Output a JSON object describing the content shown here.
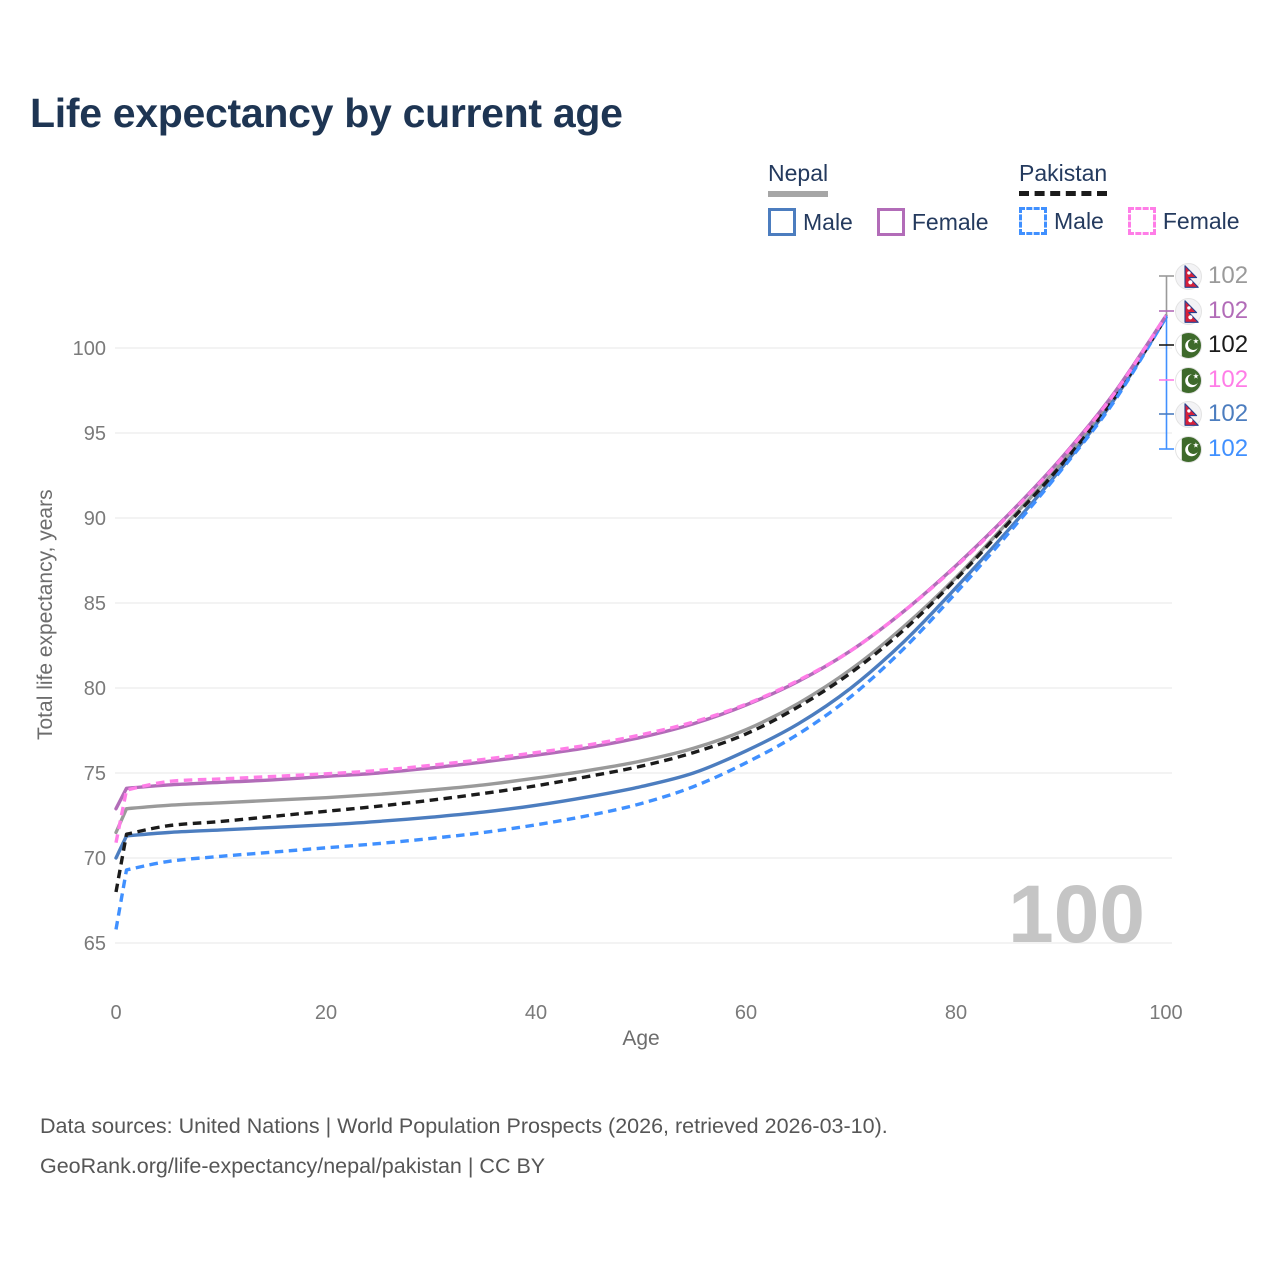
{
  "title": "Life expectancy by current age",
  "legend": {
    "groups": [
      {
        "label": "Nepal",
        "style": "solid",
        "underline_color": "#a6a6a6",
        "items": [
          {
            "label": "Male",
            "color": "#4c7dbf",
            "dashed": false
          },
          {
            "label": "Female",
            "color": "#b26cb8",
            "dashed": false
          }
        ]
      },
      {
        "label": "Pakistan",
        "style": "dashed",
        "underline_color": "#1b1b1b",
        "items": [
          {
            "label": "Male",
            "color": "#4090ff",
            "dashed": true
          },
          {
            "label": "Female",
            "color": "#ff7de7",
            "dashed": true
          }
        ]
      }
    ]
  },
  "end_labels": [
    {
      "value": "102",
      "flag": "nepal",
      "color": "#9a9a9a",
      "series": "Nepal"
    },
    {
      "value": "102",
      "flag": "nepal",
      "color": "#b26cb8",
      "series": "Nepal Female"
    },
    {
      "value": "102",
      "flag": "pakistan",
      "color": "#1b1b1b",
      "series": "Pakistan"
    },
    {
      "value": "102",
      "flag": "pakistan",
      "color": "#ff7de7",
      "series": "Pakistan Female"
    },
    {
      "value": "102",
      "flag": "nepal",
      "color": "#4c7dbf",
      "series": "Nepal Male"
    },
    {
      "value": "102",
      "flag": "pakistan",
      "color": "#4090ff",
      "series": "Pakistan Male"
    }
  ],
  "watermark": "100",
  "footer": {
    "line1": "Data sources: United Nations | World Population Prospects (2026, retrieved 2026-03-10).",
    "line2": "GeoRank.org/life-expectancy/nepal/pakistan | CC BY"
  },
  "chart_data": {
    "type": "line",
    "title": "Life expectancy by current age",
    "xlabel": "Age",
    "ylabel": "Total life expectancy, years",
    "x_ticks": [
      0,
      20,
      40,
      60,
      80,
      100
    ],
    "y_ticks": [
      65,
      70,
      75,
      80,
      85,
      90,
      95,
      100
    ],
    "xlim": [
      0,
      100
    ],
    "ylim": [
      64.5,
      103
    ],
    "grid": "horizontal",
    "legend_position": "top-right",
    "ages": [
      0,
      1,
      5,
      10,
      15,
      20,
      25,
      30,
      35,
      40,
      45,
      50,
      55,
      60,
      65,
      70,
      75,
      80,
      85,
      90,
      95,
      100
    ],
    "series": [
      {
        "name": "Nepal",
        "country": "Nepal",
        "sex": "both",
        "line": "solid",
        "color": "#9a9a9a",
        "end_label": "102",
        "values": [
          71.5,
          72.9,
          73.1,
          73.25,
          73.4,
          73.55,
          73.75,
          74.0,
          74.3,
          74.7,
          75.15,
          75.7,
          76.45,
          77.55,
          79.1,
          81.1,
          83.6,
          86.5,
          89.8,
          93.2,
          97.1,
          101.8
        ]
      },
      {
        "name": "Nepal Male",
        "country": "Nepal",
        "sex": "male",
        "line": "solid",
        "color": "#4c7dbf",
        "end_label": "102",
        "values": [
          70.0,
          71.3,
          71.5,
          71.65,
          71.8,
          71.95,
          72.15,
          72.4,
          72.7,
          73.1,
          73.6,
          74.2,
          75.0,
          76.3,
          77.9,
          80.0,
          82.7,
          85.9,
          89.3,
          92.9,
          96.9,
          101.8
        ]
      },
      {
        "name": "Pakistan",
        "country": "Pakistan",
        "sex": "both",
        "line": "dashed",
        "color": "#1b1b1b",
        "end_label": "102",
        "values": [
          68.0,
          71.4,
          71.9,
          72.15,
          72.45,
          72.75,
          73.05,
          73.4,
          73.8,
          74.25,
          74.8,
          75.4,
          76.2,
          77.3,
          78.9,
          80.9,
          83.4,
          86.4,
          89.7,
          93.1,
          97.0,
          101.8
        ]
      },
      {
        "name": "Pakistan Male",
        "country": "Pakistan",
        "sex": "male",
        "line": "dashed",
        "color": "#4090ff",
        "end_label": "102",
        "values": [
          65.8,
          69.3,
          69.8,
          70.1,
          70.35,
          70.6,
          70.85,
          71.15,
          71.5,
          71.95,
          72.5,
          73.2,
          74.2,
          75.6,
          77.3,
          79.5,
          82.3,
          85.6,
          89.1,
          92.8,
          96.8,
          101.8
        ]
      },
      {
        "name": "Nepal Female",
        "country": "Nepal",
        "sex": "female",
        "line": "solid",
        "color": "#b26cb8",
        "end_label": "102",
        "values": [
          72.9,
          74.1,
          74.3,
          74.45,
          74.6,
          74.8,
          75.0,
          75.3,
          75.65,
          76.05,
          76.5,
          77.1,
          77.9,
          79.0,
          80.4,
          82.2,
          84.5,
          87.2,
          90.2,
          93.5,
          97.3,
          101.9
        ]
      },
      {
        "name": "Pakistan Female",
        "country": "Pakistan",
        "sex": "female",
        "line": "dashed",
        "color": "#ff7de7",
        "end_label": "102",
        "values": [
          70.9,
          74.0,
          74.5,
          74.65,
          74.8,
          74.95,
          75.15,
          75.45,
          75.8,
          76.2,
          76.65,
          77.25,
          78.0,
          79.05,
          80.45,
          82.2,
          84.5,
          87.15,
          90.15,
          93.45,
          97.25,
          101.9
        ]
      }
    ]
  }
}
